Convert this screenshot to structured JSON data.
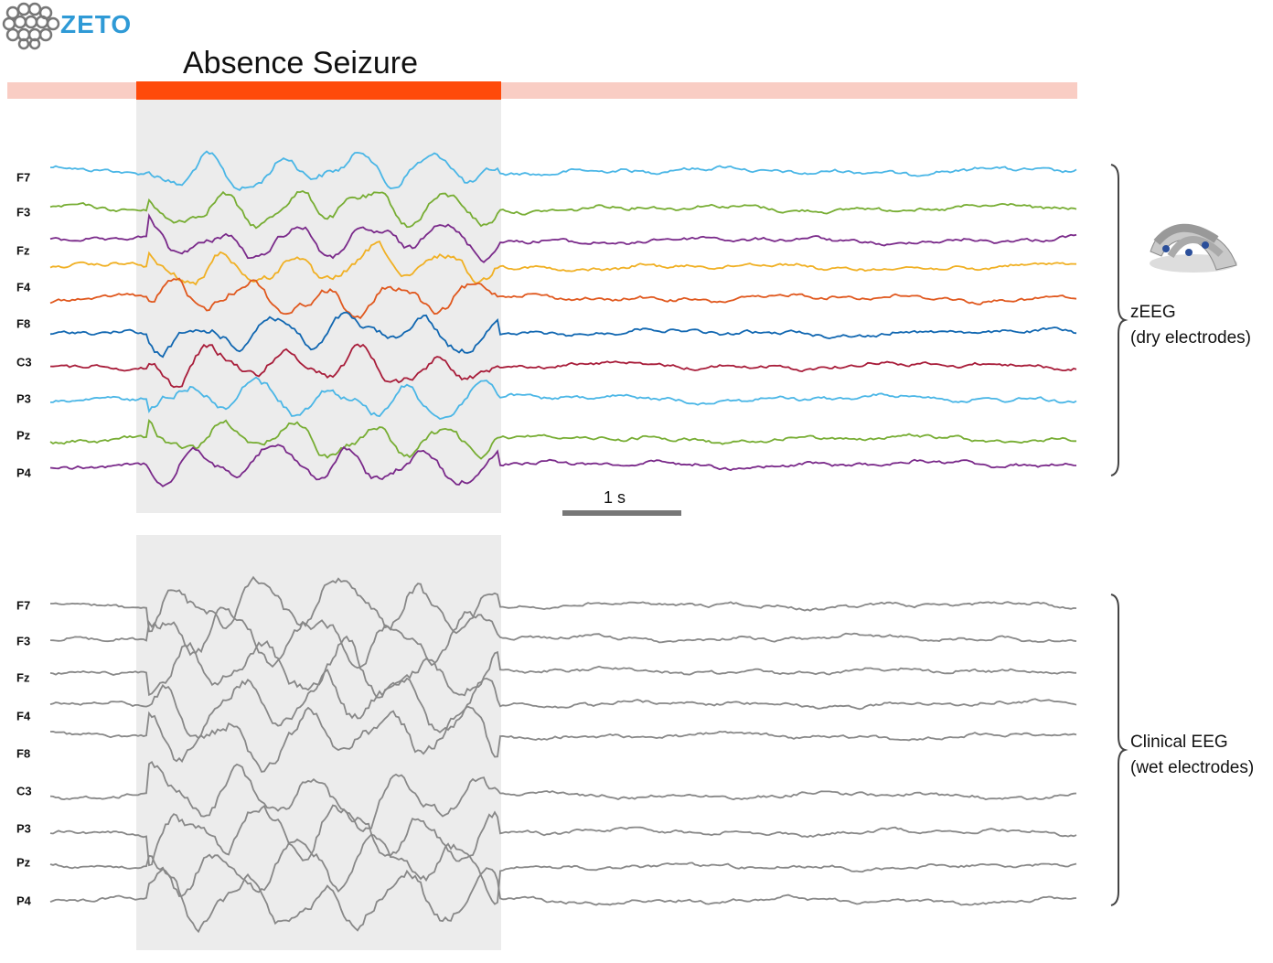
{
  "logo": "ZETO",
  "title": "Absence Seizure",
  "zeeg": {
    "channels": [
      "F7",
      "F3",
      "Fz",
      "F4",
      "F8",
      "C3",
      "P3",
      "Pz",
      "P4"
    ],
    "label": "zEEG",
    "sublabel": "(dry electrodes)"
  },
  "scale_bar": "1 s",
  "clinical": {
    "channels": [
      "F7",
      "F3",
      "Fz",
      "F4",
      "F8",
      "C3",
      "P3",
      "Pz",
      "P4"
    ],
    "label": "Clinical EEG",
    "sublabel": "(wet electrodes)"
  }
}
